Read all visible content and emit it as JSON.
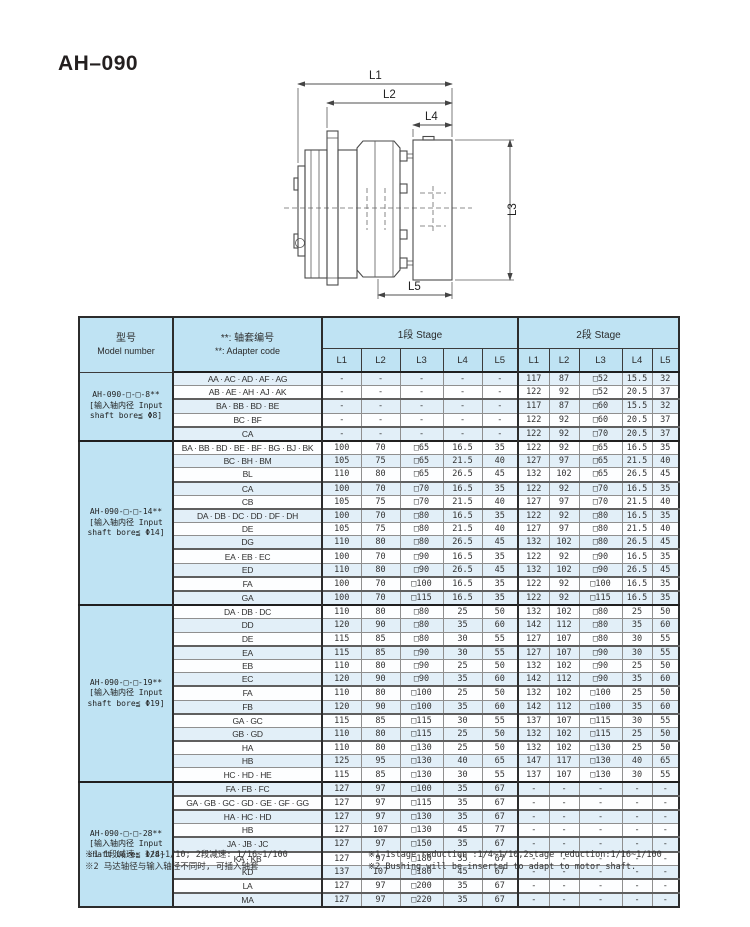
{
  "page": {
    "title": "AH–090"
  },
  "diagram": {
    "dim_labels": {
      "l1": "L1",
      "l2": "L2",
      "l3": "L3",
      "l4": "L4",
      "l5": "L5"
    }
  },
  "table": {
    "header": {
      "model_zh": "型号",
      "model_en": "Model number",
      "adapter_zh": "**: 轴套编号",
      "adapter_en": "**:  Adapter code",
      "stage1": "1段 Stage",
      "stage2": "2段 Stage",
      "dim_cols": [
        "L1",
        "L2",
        "L3",
        "L4",
        "L5"
      ]
    },
    "groups": [
      {
        "model_lines": [
          "AH-090-□-□-8**",
          "[输入轴内径 Input",
          "shaft bore≦ Φ8]"
        ],
        "rows": [
          {
            "code": "AA · AC · AD · AF · AG",
            "s1": [
              "-",
              "-",
              "-",
              "-",
              "-"
            ],
            "s2": [
              "117",
              "87",
              "□52",
              "15.5",
              "32"
            ],
            "sep": false
          },
          {
            "code": "AB · AE · AH · AJ · AK",
            "s1": [
              "-",
              "-",
              "-",
              "-",
              "-"
            ],
            "s2": [
              "122",
              "92",
              "□52",
              "20.5",
              "37"
            ],
            "sep": false
          },
          {
            "code": "BA · BB · BD · BE",
            "s1": [
              "-",
              "-",
              "-",
              "-",
              "-"
            ],
            "s2": [
              "117",
              "87",
              "□60",
              "15.5",
              "32"
            ],
            "sep": true
          },
          {
            "code": "BC · BF",
            "s1": [
              "-",
              "-",
              "-",
              "-",
              "-"
            ],
            "s2": [
              "122",
              "92",
              "□60",
              "20.5",
              "37"
            ],
            "sep": false
          },
          {
            "code": "CA",
            "s1": [
              "-",
              "-",
              "-",
              "-",
              "-"
            ],
            "s2": [
              "122",
              "92",
              "□70",
              "20.5",
              "37"
            ],
            "sep": true
          }
        ]
      },
      {
        "model_lines": [
          "AH-090-□-□-14**",
          "[输入轴内径 Input",
          "shaft bore≦ Φ14]"
        ],
        "rows": [
          {
            "code": "BA · BB · BD · BE · BF · BG · BJ · BK",
            "s1": [
              "100",
              "70",
              "□65",
              "16.5",
              "35"
            ],
            "s2": [
              "122",
              "92",
              "□65",
              "16.5",
              "35"
            ],
            "sep": false
          },
          {
            "code": "BC · BH · BM",
            "s1": [
              "105",
              "75",
              "□65",
              "21.5",
              "40"
            ],
            "s2": [
              "127",
              "97",
              "□65",
              "21.5",
              "40"
            ],
            "sep": false
          },
          {
            "code": "BL",
            "s1": [
              "110",
              "80",
              "□65",
              "26.5",
              "45"
            ],
            "s2": [
              "132",
              "102",
              "□65",
              "26.5",
              "45"
            ],
            "sep": false
          },
          {
            "code": "CA",
            "s1": [
              "100",
              "70",
              "□70",
              "16.5",
              "35"
            ],
            "s2": [
              "122",
              "92",
              "□70",
              "16.5",
              "35"
            ],
            "sep": true
          },
          {
            "code": "CB",
            "s1": [
              "105",
              "75",
              "□70",
              "21.5",
              "40"
            ],
            "s2": [
              "127",
              "97",
              "□70",
              "21.5",
              "40"
            ],
            "sep": false
          },
          {
            "code": "DA · DB · DC · DD · DF · DH",
            "s1": [
              "100",
              "70",
              "□80",
              "16.5",
              "35"
            ],
            "s2": [
              "122",
              "92",
              "□80",
              "16.5",
              "35"
            ],
            "sep": true
          },
          {
            "code": "DE",
            "s1": [
              "105",
              "75",
              "□80",
              "21.5",
              "40"
            ],
            "s2": [
              "127",
              "97",
              "□80",
              "21.5",
              "40"
            ],
            "sep": false
          },
          {
            "code": "DG",
            "s1": [
              "110",
              "80",
              "□80",
              "26.5",
              "45"
            ],
            "s2": [
              "132",
              "102",
              "□80",
              "26.5",
              "45"
            ],
            "sep": false
          },
          {
            "code": "EA · EB · EC",
            "s1": [
              "100",
              "70",
              "□90",
              "16.5",
              "35"
            ],
            "s2": [
              "122",
              "92",
              "□90",
              "16.5",
              "35"
            ],
            "sep": true
          },
          {
            "code": "ED",
            "s1": [
              "110",
              "80",
              "□90",
              "26.5",
              "45"
            ],
            "s2": [
              "132",
              "102",
              "□90",
              "26.5",
              "45"
            ],
            "sep": false
          },
          {
            "code": "FA",
            "s1": [
              "100",
              "70",
              "□100",
              "16.5",
              "35"
            ],
            "s2": [
              "122",
              "92",
              "□100",
              "16.5",
              "35"
            ],
            "sep": true
          },
          {
            "code": "GA",
            "s1": [
              "100",
              "70",
              "□115",
              "16.5",
              "35"
            ],
            "s2": [
              "122",
              "92",
              "□115",
              "16.5",
              "35"
            ],
            "sep": true
          }
        ]
      },
      {
        "model_lines": [
          "AH-090-□-□-19**",
          "[输入轴内径 Input",
          "shaft bore≦ Φ19]"
        ],
        "rows": [
          {
            "code": "DA · DB · DC",
            "s1": [
              "110",
              "80",
              "□80",
              "25",
              "50"
            ],
            "s2": [
              "132",
              "102",
              "□80",
              "25",
              "50"
            ],
            "sep": false
          },
          {
            "code": "DD",
            "s1": [
              "120",
              "90",
              "□80",
              "35",
              "60"
            ],
            "s2": [
              "142",
              "112",
              "□80",
              "35",
              "60"
            ],
            "sep": false
          },
          {
            "code": "DE",
            "s1": [
              "115",
              "85",
              "□80",
              "30",
              "55"
            ],
            "s2": [
              "127",
              "107",
              "□80",
              "30",
              "55"
            ],
            "sep": false
          },
          {
            "code": "EA",
            "s1": [
              "115",
              "85",
              "□90",
              "30",
              "55"
            ],
            "s2": [
              "127",
              "107",
              "□90",
              "30",
              "55"
            ],
            "sep": true
          },
          {
            "code": "EB",
            "s1": [
              "110",
              "80",
              "□90",
              "25",
              "50"
            ],
            "s2": [
              "132",
              "102",
              "□90",
              "25",
              "50"
            ],
            "sep": false
          },
          {
            "code": "EC",
            "s1": [
              "120",
              "90",
              "□90",
              "35",
              "60"
            ],
            "s2": [
              "142",
              "112",
              "□90",
              "35",
              "60"
            ],
            "sep": false
          },
          {
            "code": "FA",
            "s1": [
              "110",
              "80",
              "□100",
              "25",
              "50"
            ],
            "s2": [
              "132",
              "102",
              "□100",
              "25",
              "50"
            ],
            "sep": true
          },
          {
            "code": "FB",
            "s1": [
              "120",
              "90",
              "□100",
              "35",
              "60"
            ],
            "s2": [
              "142",
              "112",
              "□100",
              "35",
              "60"
            ],
            "sep": false
          },
          {
            "code": "GA · GC",
            "s1": [
              "115",
              "85",
              "□115",
              "30",
              "55"
            ],
            "s2": [
              "137",
              "107",
              "□115",
              "30",
              "55"
            ],
            "sep": true
          },
          {
            "code": "GB · GD",
            "s1": [
              "110",
              "80",
              "□115",
              "25",
              "50"
            ],
            "s2": [
              "132",
              "102",
              "□115",
              "25",
              "50"
            ],
            "sep": false
          },
          {
            "code": "HA",
            "s1": [
              "110",
              "80",
              "□130",
              "25",
              "50"
            ],
            "s2": [
              "132",
              "102",
              "□130",
              "25",
              "50"
            ],
            "sep": true
          },
          {
            "code": "HB",
            "s1": [
              "125",
              "95",
              "□130",
              "40",
              "65"
            ],
            "s2": [
              "147",
              "117",
              "□130",
              "40",
              "65"
            ],
            "sep": false
          },
          {
            "code": "HC · HD · HE",
            "s1": [
              "115",
              "85",
              "□130",
              "30",
              "55"
            ],
            "s2": [
              "137",
              "107",
              "□130",
              "30",
              "55"
            ],
            "sep": false
          }
        ]
      },
      {
        "model_lines": [
          "AH-090-□-□-28**",
          "[输入轴内径 Input",
          "shaft bore≦ Φ28]"
        ],
        "rows": [
          {
            "code": "FA · FB · FC",
            "s1": [
              "127",
              "97",
              "□100",
              "35",
              "67"
            ],
            "s2": [
              "-",
              "-",
              "-",
              "-",
              "-"
            ],
            "sep": false
          },
          {
            "code": "GA · GB · GC · GD · GE · GF · GG",
            "s1": [
              "127",
              "97",
              "□115",
              "35",
              "67"
            ],
            "s2": [
              "-",
              "-",
              "-",
              "-",
              "-"
            ],
            "sep": true
          },
          {
            "code": "HA · HC · HD",
            "s1": [
              "127",
              "97",
              "□130",
              "35",
              "67"
            ],
            "s2": [
              "-",
              "-",
              "-",
              "-",
              "-"
            ],
            "sep": true
          },
          {
            "code": "HB",
            "s1": [
              "127",
              "107",
              "□130",
              "45",
              "77"
            ],
            "s2": [
              "-",
              "-",
              "-",
              "-",
              "-"
            ],
            "sep": false
          },
          {
            "code": "JA · JB · JC",
            "s1": [
              "127",
              "97",
              "□150",
              "35",
              "67"
            ],
            "s2": [
              "-",
              "-",
              "-",
              "-",
              "-"
            ],
            "sep": true
          },
          {
            "code": "KA · KB",
            "s1": [
              "127",
              "97",
              "□180",
              "35",
              "67"
            ],
            "s2": [
              "-",
              "-",
              "-",
              "-",
              "-"
            ],
            "sep": true
          },
          {
            "code": "KD",
            "s1": [
              "137",
              "107",
              "□180",
              "45",
              "67"
            ],
            "s2": [
              "-",
              "-",
              "-",
              "-",
              "-"
            ],
            "sep": false
          },
          {
            "code": "LA",
            "s1": [
              "127",
              "97",
              "□200",
              "35",
              "67"
            ],
            "s2": [
              "-",
              "-",
              "-",
              "-",
              "-"
            ],
            "sep": true
          },
          {
            "code": "MA",
            "s1": [
              "127",
              "97",
              "□220",
              "35",
              "67"
            ],
            "s2": [
              "-",
              "-",
              "-",
              "-",
              "-"
            ],
            "sep": true
          }
        ]
      }
    ]
  },
  "footnotes": {
    "zh1": "※1 1段减速: 1/4~1/10; 2段减速: 1/16~1/100",
    "zh2": "※2 马达轴径与输入轴径不同时, 可插入轴套",
    "en1": "※1 1stage reduction :1/4~1/10,2stage reduction:1/16~1/100",
    "en2": "※2 Bushing will be inserted to adapt to motor shaft."
  },
  "colors": {
    "header_blue": "#bfe3f3",
    "stripe_blue": "#e2eff8",
    "border_dark": "#2c2c2c"
  }
}
